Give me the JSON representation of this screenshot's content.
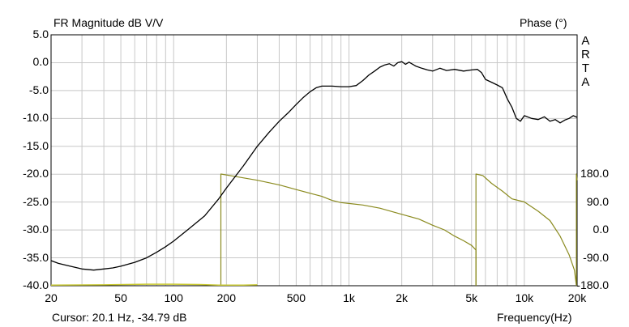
{
  "chart_data": {
    "type": "line",
    "title_left": "FR Magnitude dB V/V",
    "title_right": "Phase (°)",
    "brand_letters": [
      "A",
      "R",
      "T",
      "A"
    ],
    "xlabel": "Frequency(Hz)",
    "x_scale": "log",
    "xlim": [
      20,
      20000
    ],
    "x_ticks": [
      {
        "v": 20,
        "label": "20"
      },
      {
        "v": 50,
        "label": "50"
      },
      {
        "v": 100,
        "label": "100"
      },
      {
        "v": 200,
        "label": "200"
      },
      {
        "v": 500,
        "label": "500"
      },
      {
        "v": 1000,
        "label": "1k"
      },
      {
        "v": 2000,
        "label": "2k"
      },
      {
        "v": 5000,
        "label": "5k"
      },
      {
        "v": 10000,
        "label": "10k"
      },
      {
        "v": 20000,
        "label": "20k"
      }
    ],
    "ylim_left": [
      -40,
      5
    ],
    "y_ticks_left": [
      "5.0",
      "0.0",
      "-5.0",
      "-10.0",
      "-15.0",
      "-20.0",
      "-25.0",
      "-30.0",
      "-35.0",
      "-40.0"
    ],
    "ylim_right": [
      -180,
      180
    ],
    "y_ticks_right": [
      "180.0",
      "90.0",
      "0.0",
      "-90.0",
      "-180.0"
    ],
    "grid": true,
    "cursor_text": "Cursor:   20.1 Hz, -34.79 dB",
    "colors": {
      "magnitude": "#000000",
      "phase": "#8a8a1e",
      "phase_low": "#c8c832",
      "grid": "#c8c8c8"
    },
    "series": [
      {
        "axis": "left",
        "points": [
          [
            20,
            -35.5
          ],
          [
            22,
            -36
          ],
          [
            25,
            -36.4
          ],
          [
            30,
            -37
          ],
          [
            35,
            -37.2
          ],
          [
            40,
            -37
          ],
          [
            45,
            -36.8
          ],
          [
            50,
            -36.5
          ],
          [
            60,
            -35.8
          ],
          [
            70,
            -35
          ],
          [
            80,
            -34
          ],
          [
            90,
            -33
          ],
          [
            100,
            -32
          ],
          [
            120,
            -30
          ],
          [
            150,
            -27.5
          ],
          [
            180,
            -24.5
          ],
          [
            200,
            -22.5
          ],
          [
            250,
            -18.5
          ],
          [
            300,
            -15
          ],
          [
            350,
            -12.5
          ],
          [
            400,
            -10.5
          ],
          [
            450,
            -9
          ],
          [
            500,
            -7.5
          ],
          [
            550,
            -6.2
          ],
          [
            600,
            -5.2
          ],
          [
            650,
            -4.5
          ],
          [
            700,
            -4.2
          ],
          [
            800,
            -4.2
          ],
          [
            900,
            -4.3
          ],
          [
            1000,
            -4.3
          ],
          [
            1100,
            -4.1
          ],
          [
            1200,
            -3.2
          ],
          [
            1300,
            -2.2
          ],
          [
            1400,
            -1.5
          ],
          [
            1500,
            -0.8
          ],
          [
            1600,
            -0.4
          ],
          [
            1700,
            -0.2
          ],
          [
            1800,
            -0.6
          ],
          [
            1900,
            0.0
          ],
          [
            2000,
            0.2
          ],
          [
            2100,
            -0.3
          ],
          [
            2200,
            0.1
          ],
          [
            2400,
            -0.6
          ],
          [
            2600,
            -1.0
          ],
          [
            2800,
            -1.3
          ],
          [
            3000,
            -1.5
          ],
          [
            3300,
            -1.0
          ],
          [
            3600,
            -1.4
          ],
          [
            4000,
            -1.2
          ],
          [
            4500,
            -1.5
          ],
          [
            5000,
            -1.3
          ],
          [
            5400,
            -1.2
          ],
          [
            5700,
            -1.8
          ],
          [
            6000,
            -3.0
          ],
          [
            6500,
            -3.5
          ],
          [
            7000,
            -4.0
          ],
          [
            7500,
            -4.5
          ],
          [
            8000,
            -6.5
          ],
          [
            8500,
            -8.0
          ],
          [
            9000,
            -10.0
          ],
          [
            9500,
            -10.5
          ],
          [
            10000,
            -9.5
          ],
          [
            11000,
            -10.0
          ],
          [
            12000,
            -10.2
          ],
          [
            13000,
            -9.7
          ],
          [
            14000,
            -10.5
          ],
          [
            15000,
            -10.2
          ],
          [
            16000,
            -10.8
          ],
          [
            17000,
            -10.3
          ],
          [
            18000,
            -10.0
          ],
          [
            19000,
            -9.5
          ],
          [
            20000,
            -9.8
          ]
        ]
      },
      {
        "axis": "right",
        "segments": [
          [
            [
              186,
              -180
            ],
            [
              186,
              180
            ],
            [
              220,
              173
            ],
            [
              300,
              160
            ],
            [
              400,
              145
            ],
            [
              500,
              130
            ],
            [
              600,
              118
            ],
            [
              700,
              108
            ],
            [
              800,
              95
            ],
            [
              900,
              88
            ],
            [
              1000,
              85
            ],
            [
              1200,
              80
            ],
            [
              1500,
              70
            ],
            [
              2000,
              50
            ],
            [
              2500,
              35
            ],
            [
              3000,
              15
            ],
            [
              3500,
              0
            ],
            [
              4000,
              -20
            ],
            [
              4500,
              -35
            ],
            [
              5000,
              -50
            ],
            [
              5300,
              -65
            ],
            [
              5300,
              -180
            ]
          ],
          [
            [
              5300,
              -180
            ],
            [
              5300,
              180
            ],
            [
              5800,
              175
            ],
            [
              6500,
              150
            ],
            [
              7500,
              125
            ],
            [
              8500,
              100
            ],
            [
              10000,
              90
            ],
            [
              12000,
              60
            ],
            [
              14000,
              30
            ],
            [
              16000,
              -20
            ],
            [
              18000,
              -80
            ],
            [
              19300,
              -130
            ],
            [
              19800,
              -180
            ]
          ],
          [
            [
              19800,
              -180
            ],
            [
              19800,
              180
            ],
            [
              20000,
              160
            ]
          ]
        ]
      },
      {
        "axis": "right",
        "points": [
          [
            20,
            -178
          ],
          [
            40,
            -177
          ],
          [
            70,
            -175
          ],
          [
            100,
            -175
          ],
          [
            140,
            -176
          ],
          [
            180,
            -178
          ],
          [
            250,
            -178
          ],
          [
            300,
            -177
          ]
        ]
      }
    ]
  }
}
